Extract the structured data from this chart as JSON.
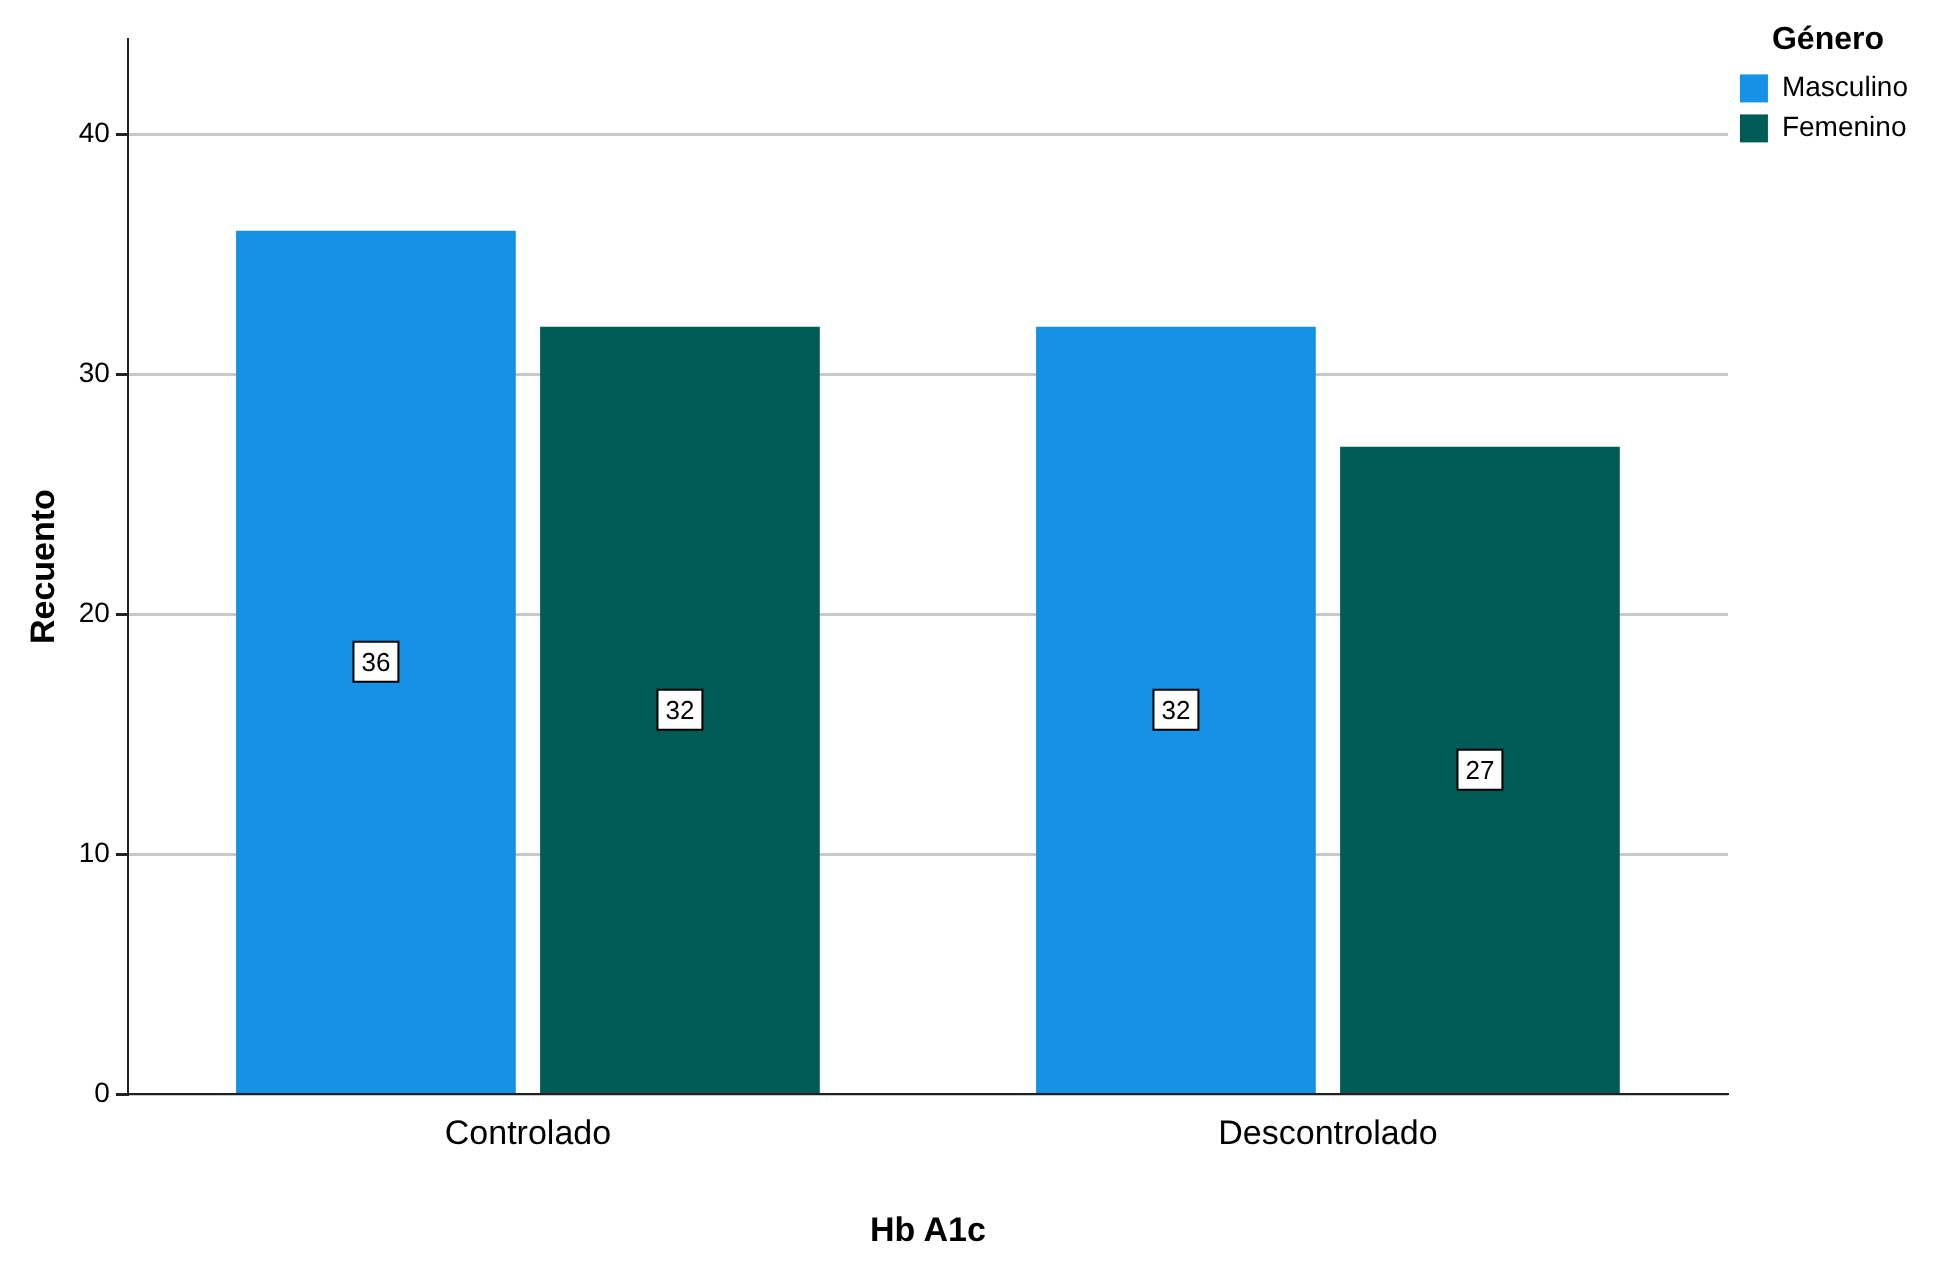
{
  "chart_data": {
    "type": "bar",
    "xlabel": "Hb A1c",
    "ylabel": "Recuento",
    "legend_title": "Género",
    "categories": [
      "Controlado",
      "Descontrolado"
    ],
    "series": [
      {
        "name": "Masculino",
        "color": "#1591e6",
        "values": [
          36,
          32
        ]
      },
      {
        "name": "Femenino",
        "color": "#005b57",
        "values": [
          32,
          27
        ]
      }
    ],
    "ylim": [
      0,
      44
    ],
    "yticks": [
      0,
      10,
      20,
      30,
      40
    ],
    "grid": "y",
    "legend": "top right",
    "data_labels": true
  }
}
